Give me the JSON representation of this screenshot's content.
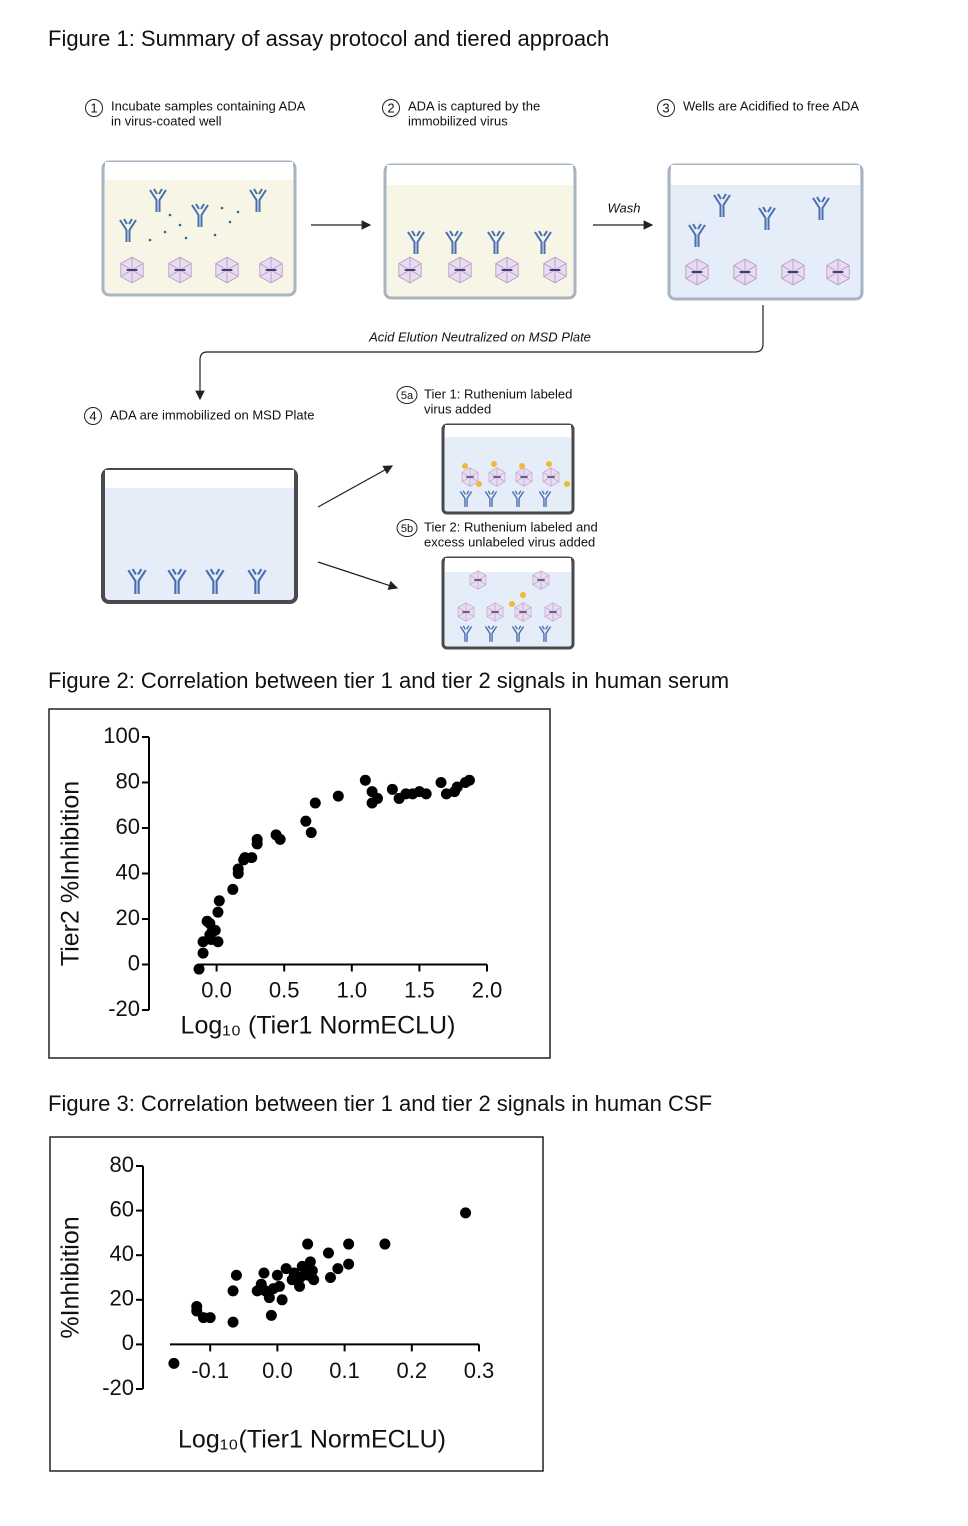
{
  "figure1": {
    "title": "Figure 1: Summary of assay protocol and tiered approach",
    "steps": [
      {
        "number": "1",
        "lines": [
          "Incubate samples containing ADA",
          "in virus-coated well"
        ]
      },
      {
        "number": "2",
        "lines": [
          "ADA is captured by the",
          "immobilized virus"
        ]
      },
      {
        "number": "3",
        "lines": [
          "Wells are Acidified to free ADA"
        ]
      },
      {
        "number": "4",
        "lines": [
          "ADA are immobilized on MSD Plate"
        ]
      },
      {
        "number": "5a",
        "lines": [
          "Tier 1: Ruthenium labeled",
          "virus added"
        ]
      },
      {
        "number": "5b",
        "lines": [
          "Tier 2: Ruthenium labeled and",
          "excess unlabeled virus added"
        ]
      }
    ],
    "wash": "Wash",
    "elution": "Acid Elution Neutralized on MSD Plate"
  },
  "chart_data": [
    {
      "type": "scatter",
      "title": "Figure 2: Correlation between tier 1 and tier 2 signals in human serum",
      "xlabel": "Log₁₀ (Tier1 NormECLU)",
      "ylabel": "Tier2 %Inhibition",
      "color": "#000000",
      "xlim": [
        -0.5,
        2.0
      ],
      "ylim": [
        -20,
        100
      ],
      "xticks": [
        {
          "value": 0,
          "label": "0.0"
        },
        0.5,
        {
          "value": 1,
          "label": "1.0"
        },
        1.5,
        {
          "value": 2,
          "label": "2.0"
        }
      ],
      "yticks": [
        100,
        80,
        60,
        40,
        20,
        0,
        -20
      ],
      "x": [
        -0.13,
        -0.1,
        -0.1,
        -0.07,
        -0.05,
        -0.05,
        -0.03,
        -0.01,
        -0.04,
        0.01,
        0.01,
        0.02,
        0.12,
        0.16,
        0.16,
        0.2,
        0.21,
        0.26,
        0.3,
        0.3,
        0.44,
        0.47,
        0.66,
        0.7,
        0.73,
        0.9,
        1.1,
        1.15,
        1.15,
        1.19,
        1.3,
        1.35,
        1.4,
        1.45,
        1.5,
        1.55,
        1.66,
        1.7,
        1.76,
        1.78,
        1.84,
        1.87
      ],
      "values": [
        -2,
        5,
        10,
        19,
        18,
        13,
        15,
        15,
        11,
        10,
        23,
        28,
        33,
        40,
        42,
        46,
        47,
        47,
        55,
        53,
        57,
        55,
        63,
        58,
        71,
        74,
        81,
        76,
        71,
        73,
        77,
        73,
        75,
        75,
        76,
        75,
        80,
        75,
        76,
        78,
        80,
        81
      ]
    },
    {
      "type": "scatter",
      "title": "Figure 3: Correlation between tier 1 and tier 2 signals in human CSF",
      "xlabel": "Log₁₀(Tier1 NormECLU)",
      "ylabel": "%Inhibition",
      "color": "#000000",
      "xlim": [
        -0.2,
        0.3
      ],
      "ylim": [
        -20,
        80
      ],
      "xticks": [
        -0.1,
        {
          "value": 0,
          "label": "0.0"
        },
        0.1,
        0.2,
        0.3
      ],
      "yticks": [
        80,
        60,
        40,
        20,
        0,
        -20
      ],
      "x": [
        -0.154,
        -0.12,
        -0.12,
        -0.11,
        -0.1,
        -0.066,
        -0.066,
        -0.061,
        -0.03,
        -0.024,
        -0.02,
        -0.018,
        -0.012,
        -0.009,
        -0.006,
        0,
        0.003,
        0.007,
        0.022,
        0.025,
        0.033,
        0.034,
        0.037,
        0.042,
        0.046,
        0.045,
        0.049,
        0.054,
        0.076,
        0.079,
        0.09,
        0.106,
        0.106,
        0.16,
        0.28,
        0.052,
        0.013
      ],
      "values": [
        -8.5,
        17,
        15,
        12,
        12,
        10,
        24,
        31,
        24,
        27,
        32,
        24,
        21,
        13,
        25,
        31,
        26,
        20,
        29,
        32,
        26,
        30,
        35,
        33,
        31,
        45,
        37,
        29,
        41,
        30,
        34,
        36,
        45,
        45,
        59,
        33,
        34
      ]
    }
  ]
}
